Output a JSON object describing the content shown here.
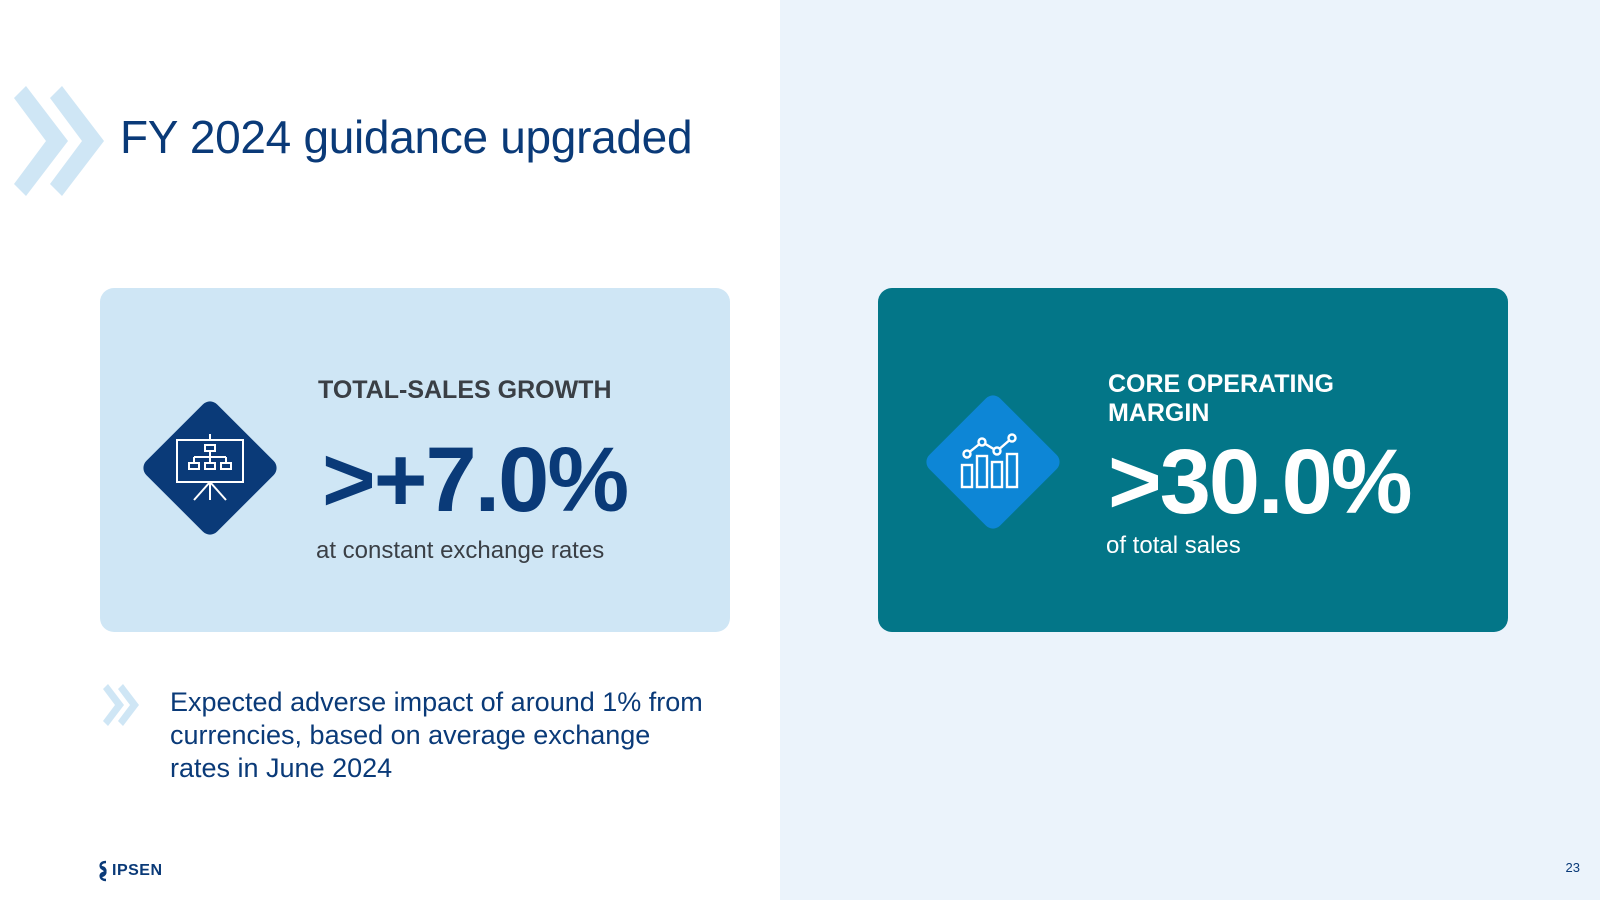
{
  "slide": {
    "title": "FY 2024 guidance upgraded",
    "page_number": "23"
  },
  "cards": {
    "total_sales": {
      "label": "TOTAL-SALES GROWTH",
      "value": ">+7.0%",
      "subtext": "at constant exchange rates",
      "icon": "org-chart-presentation-icon"
    },
    "core_operating": {
      "label": "CORE OPERATING MARGIN",
      "value": ">30.0%",
      "subtext": "of total sales",
      "icon": "bar-line-chart-icon"
    }
  },
  "note": {
    "text": "Expected adverse impact of around 1% from currencies, based on average exchange rates in June 2024"
  },
  "footer": {
    "logo_text": "IPSEN"
  },
  "colors": {
    "navy": "#0a3a78",
    "light_blue_card": "#cfe6f5",
    "teal_card": "#037688",
    "bright_blue_diamond": "#0d86d6",
    "chevron_light": "#cfe6f5",
    "right_background": "#ebf3fb"
  }
}
